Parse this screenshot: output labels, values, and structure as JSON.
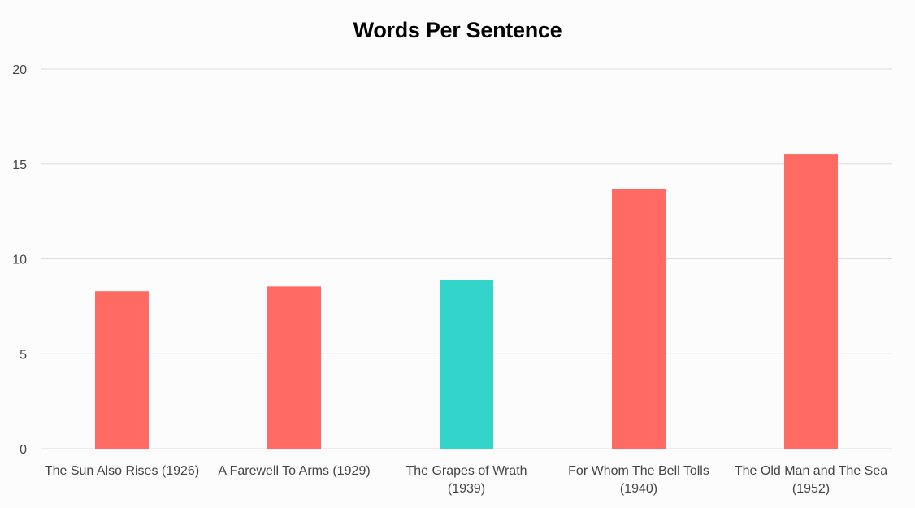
{
  "chart_data": {
    "type": "bar",
    "title": "Words Per Sentence",
    "xlabel": "",
    "ylabel": "",
    "ylim": [
      0,
      20
    ],
    "yticks": [
      0,
      5,
      10,
      15,
      20
    ],
    "grid": true,
    "categories": [
      [
        "The Sun Also Rises (1926)"
      ],
      [
        "A Farewell To Arms (1929)"
      ],
      [
        "The Grapes of Wrath",
        "(1939)"
      ],
      [
        "For Whom The Bell Tolls",
        "(1940)"
      ],
      [
        "The Old Man and The Sea",
        "(1952)"
      ]
    ],
    "values": [
      8.3,
      8.55,
      8.9,
      13.7,
      15.5
    ],
    "colors": [
      "#ff6a63",
      "#ff6a63",
      "#33d4ca",
      "#ff6a63",
      "#ff6a63"
    ]
  }
}
